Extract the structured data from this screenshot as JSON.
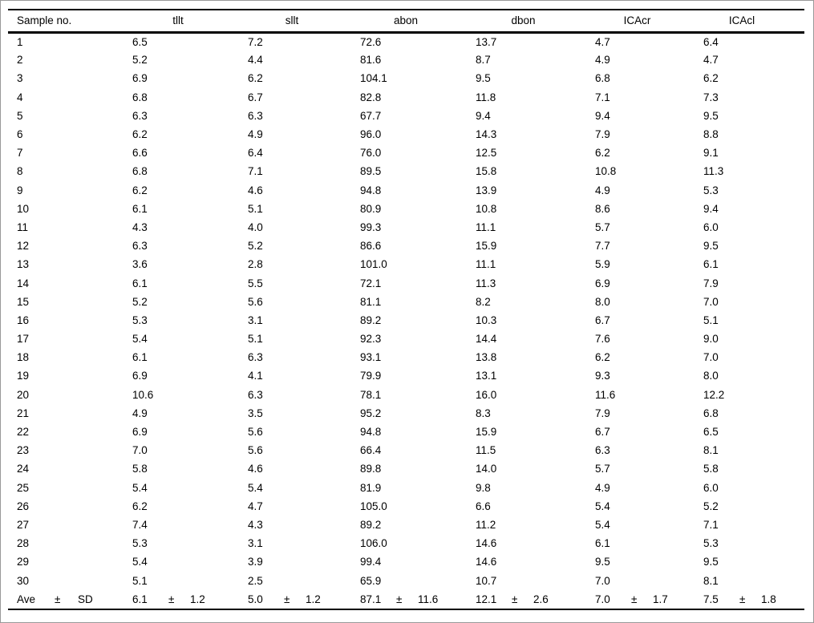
{
  "colors": {
    "background": "#ffffff",
    "text": "#000000",
    "table_rules": "#000000",
    "page_frame": "#999999"
  },
  "chart_data": {
    "type": "table",
    "columns": [
      "Sample no.",
      "tllt",
      "sllt",
      "abon",
      "dbon",
      "ICAcr",
      "ICAcl"
    ],
    "rows": [
      [
        "1",
        "6.5",
        "7.2",
        "72.6",
        "13.7",
        "4.7",
        "6.4"
      ],
      [
        "2",
        "5.2",
        "4.4",
        "81.6",
        "8.7",
        "4.9",
        "4.7"
      ],
      [
        "3",
        "6.9",
        "6.2",
        "104.1",
        "9.5",
        "6.8",
        "6.2"
      ],
      [
        "4",
        "6.8",
        "6.7",
        "82.8",
        "11.8",
        "7.1",
        "7.3"
      ],
      [
        "5",
        "6.3",
        "6.3",
        "67.7",
        "9.4",
        "9.4",
        "9.5"
      ],
      [
        "6",
        "6.2",
        "4.9",
        "96.0",
        "14.3",
        "7.9",
        "8.8"
      ],
      [
        "7",
        "6.6",
        "6.4",
        "76.0",
        "12.5",
        "6.2",
        "9.1"
      ],
      [
        "8",
        "6.8",
        "7.1",
        "89.5",
        "15.8",
        "10.8",
        "11.3"
      ],
      [
        "9",
        "6.2",
        "4.6",
        "94.8",
        "13.9",
        "4.9",
        "5.3"
      ],
      [
        "10",
        "6.1",
        "5.1",
        "80.9",
        "10.8",
        "8.6",
        "9.4"
      ],
      [
        "11",
        "4.3",
        "4.0",
        "99.3",
        "11.1",
        "5.7",
        "6.0"
      ],
      [
        "12",
        "6.3",
        "5.2",
        "86.6",
        "15.9",
        "7.7",
        "9.5"
      ],
      [
        "13",
        "3.6",
        "2.8",
        "101.0",
        "11.1",
        "5.9",
        "6.1"
      ],
      [
        "14",
        "6.1",
        "5.5",
        "72.1",
        "11.3",
        "6.9",
        "7.9"
      ],
      [
        "15",
        "5.2",
        "5.6",
        "81.1",
        "8.2",
        "8.0",
        "7.0"
      ],
      [
        "16",
        "5.3",
        "3.1",
        "89.2",
        "10.3",
        "6.7",
        "5.1"
      ],
      [
        "17",
        "5.4",
        "5.1",
        "92.3",
        "14.4",
        "7.6",
        "9.0"
      ],
      [
        "18",
        "6.1",
        "6.3",
        "93.1",
        "13.8",
        "6.2",
        "7.0"
      ],
      [
        "19",
        "6.9",
        "4.1",
        "79.9",
        "13.1",
        "9.3",
        "8.0"
      ],
      [
        "20",
        "10.6",
        "6.3",
        "78.1",
        "16.0",
        "11.6",
        "12.2"
      ],
      [
        "21",
        "4.9",
        "3.5",
        "95.2",
        "8.3",
        "7.9",
        "6.8"
      ],
      [
        "22",
        "6.9",
        "5.6",
        "94.8",
        "15.9",
        "6.7",
        "6.5"
      ],
      [
        "23",
        "7.0",
        "5.6",
        "66.4",
        "11.5",
        "6.3",
        "8.1"
      ],
      [
        "24",
        "5.8",
        "4.6",
        "89.8",
        "14.0",
        "5.7",
        "5.8"
      ],
      [
        "25",
        "5.4",
        "5.4",
        "81.9",
        "9.8",
        "4.9",
        "6.0"
      ],
      [
        "26",
        "6.2",
        "4.7",
        "105.0",
        "6.6",
        "5.4",
        "5.2"
      ],
      [
        "27",
        "7.4",
        "4.3",
        "89.2",
        "11.2",
        "5.4",
        "7.1"
      ],
      [
        "28",
        "5.3",
        "3.1",
        "106.0",
        "14.6",
        "6.1",
        "5.3"
      ],
      [
        "29",
        "5.4",
        "3.9",
        "99.4",
        "14.6",
        "9.5",
        "9.5"
      ],
      [
        "30",
        "5.1",
        "2.5",
        "65.9",
        "10.7",
        "7.0",
        "8.1"
      ]
    ],
    "summary": {
      "label": "Ave",
      "pm": "±",
      "sd_label": "SD",
      "stats": [
        {
          "ave": "6.1",
          "sd": "1.2"
        },
        {
          "ave": "5.0",
          "sd": "1.2"
        },
        {
          "ave": "87.1",
          "sd": "11.6"
        },
        {
          "ave": "12.1",
          "sd": "2.6"
        },
        {
          "ave": "7.0",
          "sd": "1.7"
        },
        {
          "ave": "7.5",
          "sd": "1.8"
        }
      ]
    },
    "layout": {
      "gridlines": "horizontal rules only (top, below header, bottom)",
      "value_alignment": "left",
      "header_alignment": "centered except first column"
    }
  }
}
